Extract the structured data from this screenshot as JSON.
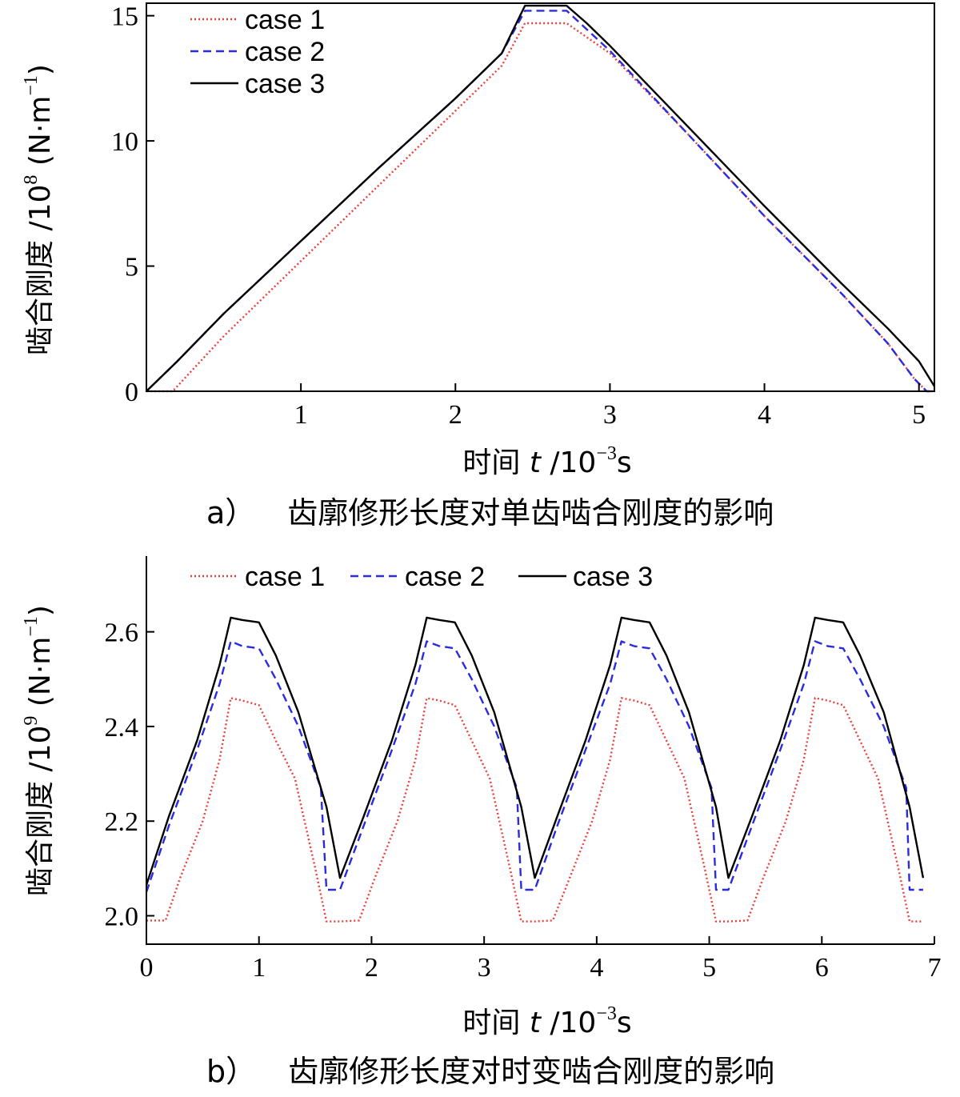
{
  "chart_data": [
    {
      "type": "line",
      "caption_label": "a）",
      "caption_text": "齿廓修形长度对单齿啮合刚度的影响",
      "xlabel": {
        "prefix": "时间 ",
        "var": "t",
        "unit_pre": " /10",
        "unit_exp": "−3",
        "unit_post": "s"
      },
      "ylabel": {
        "prefix": "啮合刚度 /10",
        "exp1": "8",
        "unit_pre": " (N·m",
        "exp2": "−1",
        "unit_post": ")"
      },
      "xlim": [
        0,
        5.1
      ],
      "ylim": [
        0,
        15.5
      ],
      "xticks": [
        1,
        2,
        3,
        4,
        5
      ],
      "yticks": [
        0,
        5,
        10,
        15
      ],
      "legend_position": "top-left",
      "series": [
        {
          "name": "case 1",
          "color": "#e8413c",
          "dash": "dotted",
          "x": [
            0,
            0.17,
            0.5,
            1.0,
            1.5,
            2.0,
            2.3,
            2.45,
            2.72,
            3.0,
            3.5,
            4.0,
            4.5,
            4.8,
            4.97,
            5.05,
            5.1
          ],
          "y": [
            0,
            0,
            2.2,
            5.2,
            8.2,
            11.2,
            13.0,
            14.7,
            14.7,
            13.5,
            10.3,
            7.0,
            3.9,
            1.9,
            0.5,
            0,
            0
          ]
        },
        {
          "name": "case 2",
          "color": "#2b2bdf",
          "dash": "dashed",
          "x": [
            0,
            0.2,
            0.5,
            1.0,
            1.5,
            2.0,
            2.3,
            2.45,
            2.72,
            3.0,
            3.5,
            4.0,
            4.5,
            4.8,
            4.97,
            5.05,
            5.1
          ],
          "y": [
            0,
            1.2,
            3.1,
            6.0,
            8.9,
            11.7,
            13.5,
            15.2,
            15.2,
            13.6,
            10.3,
            7.0,
            3.9,
            1.9,
            0.5,
            0,
            0
          ]
        },
        {
          "name": "case 3",
          "color": "#000000",
          "dash": "solid",
          "x": [
            0,
            0.2,
            0.5,
            1.0,
            1.5,
            2.0,
            2.3,
            2.45,
            2.72,
            2.85,
            3.0,
            3.5,
            4.0,
            4.5,
            4.8,
            5.0,
            5.1
          ],
          "y": [
            0,
            1.2,
            3.1,
            6.0,
            8.9,
            11.7,
            13.5,
            15.4,
            15.4,
            14.7,
            13.8,
            10.6,
            7.4,
            4.3,
            2.5,
            1.2,
            0.2
          ]
        }
      ]
    },
    {
      "type": "line",
      "caption_label": "b）",
      "caption_text": "齿廓修形长度对时变啮合刚度的影响",
      "xlabel": {
        "prefix": "时间 ",
        "var": "t",
        "unit_pre": " /10",
        "unit_exp": "−3",
        "unit_post": "s"
      },
      "ylabel": {
        "prefix": "啮合刚度 /10",
        "exp1": "9",
        "unit_pre": " (N·m",
        "exp2": "−1",
        "unit_post": ")"
      },
      "xlim": [
        0,
        7
      ],
      "ylim": [
        1.94,
        2.76
      ],
      "xticks": [
        0,
        1,
        2,
        3,
        4,
        5,
        6,
        7
      ],
      "yticks": [
        2.0,
        2.2,
        2.4,
        2.6
      ],
      "ytick_labels": [
        "2.0",
        "2.2",
        "2.4",
        "2.6"
      ],
      "legend_position": "top",
      "series": [
        {
          "name": "case 1",
          "color": "#e8413c",
          "dash": "dotted",
          "x": [
            0,
            0.17,
            0.3,
            0.5,
            0.65,
            0.75,
            0.85,
            1.0,
            1.15,
            1.32,
            1.5,
            1.6,
            1.72,
            1.89,
            2.03,
            2.23,
            2.39,
            2.49,
            2.6,
            2.74,
            2.89,
            3.05,
            3.23,
            3.33,
            3.45,
            3.61,
            3.76,
            3.96,
            4.12,
            4.22,
            4.33,
            4.47,
            4.62,
            4.78,
            4.96,
            5.06,
            5.17,
            5.34,
            5.48,
            5.68,
            5.84,
            5.94,
            6.05,
            6.19,
            6.34,
            6.5,
            6.68,
            6.78,
            6.9
          ],
          "y": [
            1.99,
            1.99,
            2.08,
            2.2,
            2.33,
            2.46,
            2.455,
            2.445,
            2.37,
            2.29,
            2.1,
            1.988,
            1.988,
            1.99,
            2.08,
            2.2,
            2.33,
            2.46,
            2.455,
            2.445,
            2.37,
            2.29,
            2.1,
            1.988,
            1.988,
            1.99,
            2.08,
            2.2,
            2.33,
            2.46,
            2.455,
            2.445,
            2.37,
            2.29,
            2.1,
            1.988,
            1.988,
            1.99,
            2.08,
            2.2,
            2.33,
            2.46,
            2.455,
            2.445,
            2.37,
            2.29,
            2.1,
            1.988,
            1.988
          ]
        },
        {
          "name": "case 2",
          "color": "#2b2bdf",
          "dash": "dashed",
          "x": [
            0,
            0.2,
            0.45,
            0.65,
            0.75,
            0.85,
            1.0,
            1.15,
            1.35,
            1.55,
            1.6,
            1.72,
            1.93,
            2.18,
            2.39,
            2.49,
            2.6,
            2.74,
            2.89,
            3.09,
            3.29,
            3.33,
            3.45,
            3.65,
            3.9,
            4.12,
            4.22,
            4.33,
            4.47,
            4.62,
            4.82,
            5.02,
            5.06,
            5.17,
            5.38,
            5.63,
            5.84,
            5.94,
            6.05,
            6.19,
            6.34,
            6.55,
            6.75,
            6.78,
            6.9
          ],
          "y": [
            2.05,
            2.19,
            2.35,
            2.49,
            2.58,
            2.57,
            2.565,
            2.5,
            2.4,
            2.27,
            2.055,
            2.055,
            2.19,
            2.35,
            2.49,
            2.58,
            2.57,
            2.565,
            2.5,
            2.4,
            2.27,
            2.055,
            2.055,
            2.19,
            2.35,
            2.49,
            2.58,
            2.57,
            2.565,
            2.5,
            2.4,
            2.27,
            2.055,
            2.055,
            2.19,
            2.35,
            2.49,
            2.58,
            2.57,
            2.565,
            2.5,
            2.4,
            2.27,
            2.055,
            2.055
          ]
        },
        {
          "name": "case 3",
          "color": "#000000",
          "dash": "solid",
          "x": [
            0,
            0.2,
            0.45,
            0.65,
            0.75,
            0.85,
            1.0,
            1.15,
            1.35,
            1.6,
            1.72,
            1.93,
            2.18,
            2.39,
            2.49,
            2.6,
            2.74,
            2.89,
            3.09,
            3.33,
            3.45,
            3.65,
            3.9,
            4.12,
            4.22,
            4.33,
            4.47,
            4.62,
            4.82,
            5.06,
            5.17,
            5.38,
            5.63,
            5.84,
            5.94,
            6.05,
            6.19,
            6.34,
            6.55,
            6.78,
            6.9
          ],
          "y": [
            2.065,
            2.21,
            2.37,
            2.53,
            2.63,
            2.625,
            2.62,
            2.55,
            2.43,
            2.23,
            2.08,
            2.21,
            2.37,
            2.53,
            2.63,
            2.625,
            2.62,
            2.55,
            2.43,
            2.23,
            2.08,
            2.21,
            2.37,
            2.53,
            2.63,
            2.625,
            2.62,
            2.55,
            2.43,
            2.23,
            2.08,
            2.21,
            2.37,
            2.53,
            2.63,
            2.625,
            2.62,
            2.55,
            2.43,
            2.23,
            2.08
          ]
        }
      ]
    }
  ]
}
